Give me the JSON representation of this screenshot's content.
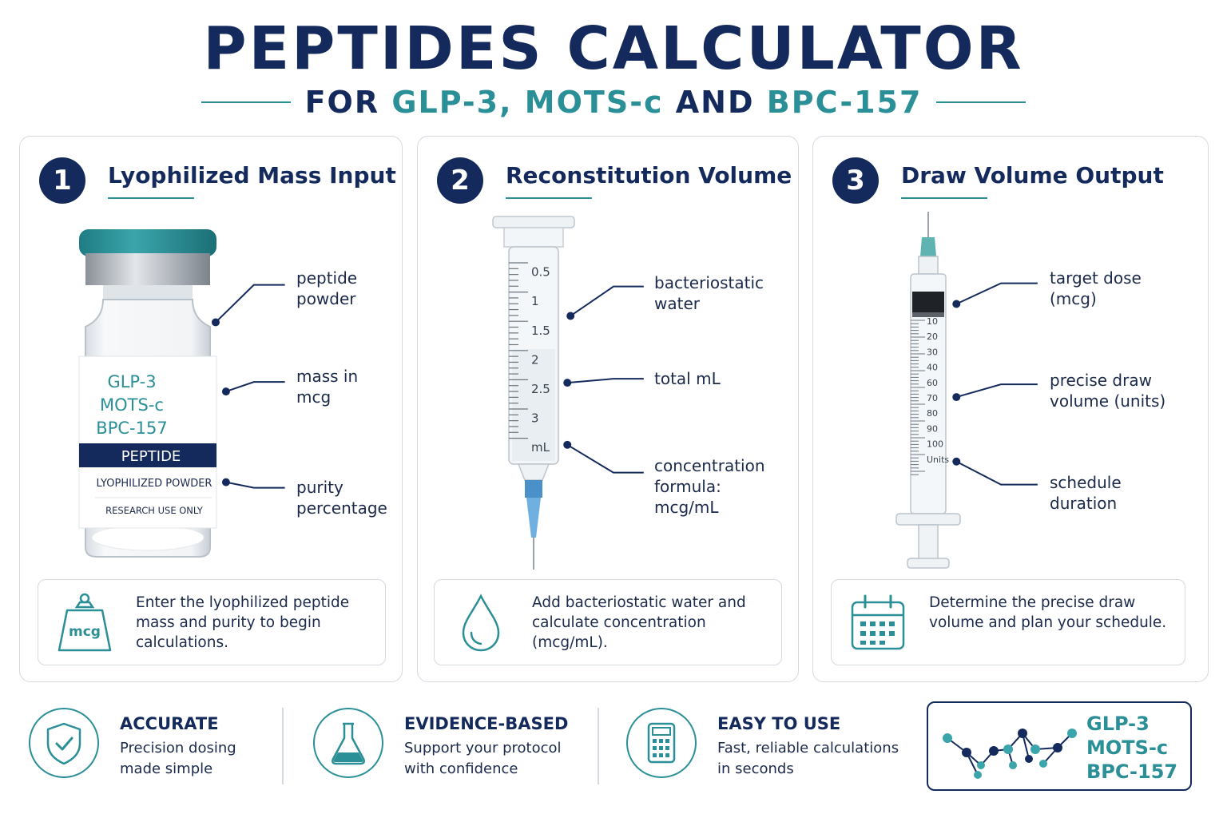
{
  "header": {
    "title": "PEPTIDES CALCULATOR",
    "subtitle_prefix": "FOR",
    "subtitle_p1": "GLP-3,",
    "subtitle_p2": "MOTS-c",
    "subtitle_mid": "AND",
    "subtitle_p3": "BPC-157"
  },
  "colors": {
    "navy": "#142a5c",
    "teal": "#2a8f96",
    "border": "#d5d9e0"
  },
  "step1": {
    "number": "1",
    "title": "Lyophilized Mass Input",
    "vial": {
      "line1": "GLP-3",
      "line2": "MOTS-c",
      "line3": "BPC-157",
      "band": "PEPTIDE",
      "form": "LYOPHILIZED POWDER",
      "notice": "RESEARCH USE ONLY"
    },
    "labels": [
      "peptide\npowder",
      "mass in\nmcg",
      "purity\npercentage"
    ],
    "info_icon": "mcg-weight-icon",
    "info_icon_text": "mcg",
    "info": "Enter the lyophilized peptide mass and purity to begin calculations."
  },
  "step2": {
    "number": "2",
    "title": "Reconstitution Volume",
    "scale": [
      "0.5",
      "1",
      "1.5",
      "2",
      "2.5",
      "3",
      "mL"
    ],
    "labels": [
      "bacteriostatic\nwater",
      "total mL",
      "concentration\nformula:\nmcg/mL"
    ],
    "info_icon": "water-drop-icon",
    "info": "Add bacteriostatic water and calculate concentration (mcg/mL)."
  },
  "step3": {
    "number": "3",
    "title": "Draw Volume Output",
    "scale": [
      "10",
      "20",
      "30",
      "40",
      "60",
      "70",
      "80",
      "90",
      "100",
      "Units"
    ],
    "labels": [
      "target dose\n(mcg)",
      "precise draw\nvolume (units)",
      "schedule\nduration"
    ],
    "info_icon": "calendar-icon",
    "info": "Determine the precise draw volume and plan your schedule."
  },
  "features": [
    {
      "icon": "shield-check-icon",
      "title": "ACCURATE",
      "text": "Precision dosing\nmade simple"
    },
    {
      "icon": "flask-icon",
      "title": "EVIDENCE-BASED",
      "text": "Support your protocol\nwith confidence"
    },
    {
      "icon": "calculator-icon",
      "title": "EASY TO USE",
      "text": "Fast, reliable calculations\nin seconds"
    }
  ],
  "peptide_box": {
    "icon": "molecule-icon",
    "names": [
      "GLP-3",
      "MOTS-c",
      "BPC-157"
    ]
  }
}
